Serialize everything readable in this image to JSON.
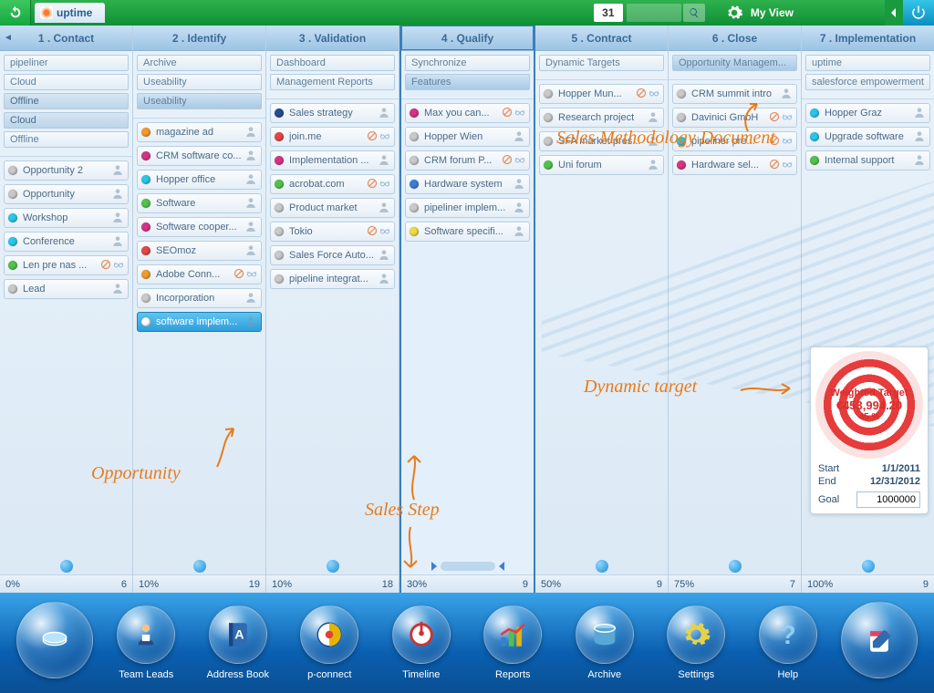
{
  "colors": {
    "header_green": "#1da844",
    "accent_blue": "#2e8fd4",
    "dock_blue": "#0a5fb0",
    "annotation": "#e87b1a",
    "target_red": "#d62e2e",
    "dots": {
      "gray": "#c9c9c9",
      "cyan": "#28c6e8",
      "orange": "#f29a2e",
      "green": "#52c24a",
      "magenta": "#d63384",
      "red": "#e64545",
      "yellow": "#eedc3e",
      "white": "#ffffff",
      "navy": "#274b8f",
      "blue": "#3a7fd6"
    }
  },
  "topbar": {
    "app_title": "uptime",
    "count": "31",
    "myview": "My View"
  },
  "columns": [
    {
      "id": "contact",
      "title": "1 . Contact",
      "pct": "0%",
      "count": "6",
      "docs": [
        {
          "t": "pipeliner"
        },
        {
          "t": "Cloud"
        },
        {
          "t": "Offline",
          "dark": true
        },
        {
          "t": "Cloud",
          "dark": true
        },
        {
          "t": "Offline"
        }
      ],
      "cards": [
        {
          "t": "Opportunity 2",
          "c": "gray",
          "p": true
        },
        {
          "t": "Opportunity",
          "c": "gray",
          "p": true
        },
        {
          "t": "Workshop",
          "c": "cyan",
          "p": true
        },
        {
          "t": "Conference",
          "c": "cyan",
          "p": true
        },
        {
          "t": "Len pre nas ...",
          "c": "green",
          "b": true,
          "g": true
        },
        {
          "t": "Lead",
          "c": "gray",
          "p": true
        }
      ]
    },
    {
      "id": "identify",
      "title": "2 . Identify",
      "pct": "10%",
      "count": "19",
      "docs": [
        {
          "t": "Archive"
        },
        {
          "t": "Useability"
        },
        {
          "t": "Useability",
          "sel": true
        }
      ],
      "cards": [
        {
          "t": "magazine ad",
          "c": "orange",
          "p": true
        },
        {
          "t": "CRM software co...",
          "c": "magenta",
          "p": true
        },
        {
          "t": "Hopper office",
          "c": "cyan",
          "p": true
        },
        {
          "t": "Software",
          "c": "green",
          "p": true
        },
        {
          "t": "Software cooper...",
          "c": "magenta",
          "p": true
        },
        {
          "t": "SEOmoz",
          "c": "red",
          "p": true
        },
        {
          "t": "Adobe Conn...",
          "c": "orange",
          "b": true,
          "g": true
        },
        {
          "t": "Incorporation",
          "c": "gray",
          "p": true
        },
        {
          "t": "software implem...",
          "c": "white",
          "p": true,
          "hl": true
        }
      ]
    },
    {
      "id": "validation",
      "title": "3 . Validation",
      "pct": "10%",
      "count": "18",
      "docs": [
        {
          "t": "Dashboard"
        },
        {
          "t": "Management Reports"
        }
      ],
      "cards": [
        {
          "t": "Sales strategy",
          "c": "navy",
          "p": true
        },
        {
          "t": "join.me",
          "c": "red",
          "b": true,
          "g": true
        },
        {
          "t": "Implementation ...",
          "c": "magenta",
          "p": true
        },
        {
          "t": "acrobat.com",
          "c": "green",
          "b": true,
          "g": true
        },
        {
          "t": "Product market",
          "c": "gray",
          "p": true
        },
        {
          "t": "Tokio",
          "c": "gray",
          "b": true,
          "g": true
        },
        {
          "t": "Sales Force Auto...",
          "c": "gray",
          "p": true
        },
        {
          "t": "pipeline integrat...",
          "c": "gray",
          "p": true
        }
      ]
    },
    {
      "id": "qualify",
      "title": "4 . Qualify",
      "pct": "30%",
      "count": "9",
      "highlight": true,
      "docs": [
        {
          "t": "Synchronize"
        },
        {
          "t": "Features",
          "sel": true
        }
      ],
      "cards": [
        {
          "t": "Max you can...",
          "c": "magenta",
          "b": true,
          "g": true
        },
        {
          "t": "Hopper Wien",
          "c": "gray",
          "p": true
        },
        {
          "t": "CRM forum P...",
          "c": "gray",
          "b": true,
          "g": true
        },
        {
          "t": "Hardware system",
          "c": "blue",
          "p": true
        },
        {
          "t": "pipeliner implem...",
          "c": "gray",
          "p": true
        },
        {
          "t": "Software specifi...",
          "c": "yellow",
          "p": true
        }
      ]
    },
    {
      "id": "contract",
      "title": "5 . Contract",
      "pct": "50%",
      "count": "9",
      "docs": [
        {
          "t": "Dynamic Targets"
        }
      ],
      "cards": [
        {
          "t": "Hopper Mun...",
          "c": "gray",
          "b": true,
          "g": true
        },
        {
          "t": "Research project",
          "c": "gray",
          "p": true
        },
        {
          "t": "SFA market pres...",
          "c": "gray",
          "p": true
        },
        {
          "t": "Uni forum",
          "c": "green",
          "p": true
        }
      ]
    },
    {
      "id": "close",
      "title": "6 . Close",
      "pct": "75%",
      "count": "7",
      "docs": [
        {
          "t": "Opportunity Managem...",
          "sel": true
        }
      ],
      "cards": [
        {
          "t": "CRM summit intro",
          "c": "gray",
          "p": true
        },
        {
          "t": "Davinici GmbH",
          "c": "gray",
          "b": true,
          "g": true
        },
        {
          "t": "pipeliner pre...",
          "c": "cyan",
          "b": true,
          "g": true
        },
        {
          "t": "Hardware sel...",
          "c": "magenta",
          "b": true,
          "g": true
        }
      ]
    },
    {
      "id": "implementation",
      "title": "7 . Implementation",
      "pct": "100%",
      "count": "9",
      "docs": [
        {
          "t": "uptime"
        },
        {
          "t": "salesforce empowerment"
        }
      ],
      "cards": [
        {
          "t": "Hopper Graz",
          "c": "cyan",
          "p": true
        },
        {
          "t": "Upgrade software",
          "c": "cyan",
          "p": true
        },
        {
          "t": "Internal support",
          "c": "green",
          "p": true
        }
      ]
    }
  ],
  "target": {
    "label": "Weighted Target",
    "amount": "€453,994.20",
    "percent": "45 %",
    "start_label": "Start",
    "start": "1/1/2011",
    "end_label": "End",
    "end": "12/31/2012",
    "goal_label": "Goal",
    "goal": "1000000"
  },
  "annotations": {
    "methodology": "Sales Methodology Document",
    "dyn_target": "Dynamic target",
    "opportunity": "Opportunity",
    "sales_step": "Sales Step"
  },
  "dock": {
    "items": [
      {
        "id": "teamleads",
        "label": "Team Leads"
      },
      {
        "id": "addressbook",
        "label": "Address Book"
      },
      {
        "id": "pconnect",
        "label": "p-connect"
      },
      {
        "id": "timeline",
        "label": "Timeline"
      },
      {
        "id": "reports",
        "label": "Reports"
      },
      {
        "id": "archive",
        "label": "Archive"
      },
      {
        "id": "settings",
        "label": "Settings"
      },
      {
        "id": "help",
        "label": "Help"
      }
    ]
  }
}
